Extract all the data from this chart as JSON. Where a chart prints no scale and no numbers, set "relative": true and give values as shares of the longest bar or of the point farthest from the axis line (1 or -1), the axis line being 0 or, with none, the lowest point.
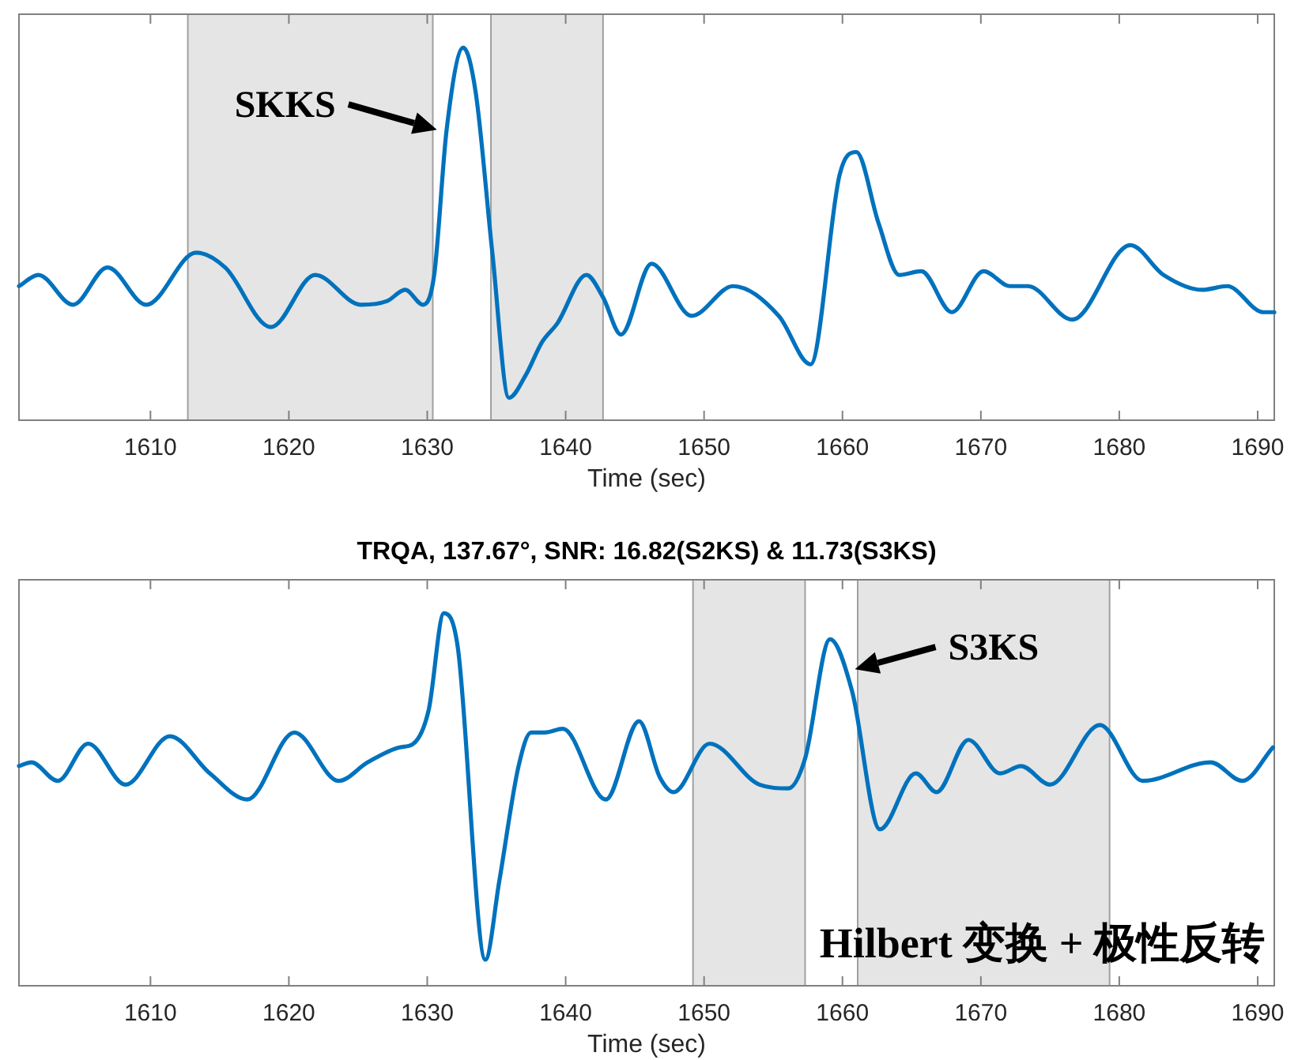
{
  "chart_data": [
    {
      "type": "line",
      "relative": true,
      "xlabel": "Time (sec)",
      "xlim": [
        1600.5,
        1691.2
      ],
      "xticks": [
        1610,
        1620,
        1630,
        1640,
        1650,
        1660,
        1670,
        1680,
        1690
      ],
      "tick_labels": "x",
      "x": [
        1600.5,
        1601.9,
        1604.4,
        1606.9,
        1609.7,
        1613.3,
        1615.4,
        1618.7,
        1621.9,
        1625.2,
        1627.1,
        1628.4,
        1629.7,
        1630.5,
        1631.4,
        1632.6,
        1633.5,
        1634.7,
        1635.9,
        1637.1,
        1638.3,
        1639.4,
        1641.5,
        1642.7,
        1644.0,
        1646.2,
        1649.1,
        1652.1,
        1655.4,
        1657.7,
        1659.8,
        1661.0,
        1662.6,
        1664.1,
        1665.7,
        1667.9,
        1670.2,
        1672.1,
        1673.4,
        1676.6,
        1680.8,
        1683.2,
        1686.0,
        1687.8,
        1690.4,
        1691.2
      ],
      "series": [
        {
          "color": "#0072bd",
          "values": [
            0.36,
            0.39,
            0.31,
            0.41,
            0.31,
            0.45,
            0.41,
            0.25,
            0.39,
            0.31,
            0.32,
            0.35,
            0.31,
            0.39,
            0.78,
            1,
            0.88,
            0.45,
            0.06,
            0.12,
            0.21,
            0.26,
            0.39,
            0.33,
            0.23,
            0.42,
            0.28,
            0.36,
            0.28,
            0.15,
            0.66,
            0.72,
            0.53,
            0.39,
            0.4,
            0.29,
            0.4,
            0.36,
            0.36,
            0.27,
            0.47,
            0.39,
            0.35,
            0.36,
            0.29,
            0.29
          ]
        }
      ],
      "bands": [
        {
          "axis": "x",
          "from": 1612.7,
          "to": 1630.4,
          "color": "#e5e5e5"
        },
        {
          "axis": "x",
          "from": 1634.6,
          "to": 1642.7,
          "color": "#e5e5e5"
        }
      ],
      "annotations": [
        {
          "text": "SKKS",
          "x": 1630.7,
          "y": 0.78
        }
      ]
    },
    {
      "type": "line",
      "relative": true,
      "title": "TRQA, 137.67°, SNR: 16.82(S2KS) & 11.73(S3KS)",
      "xlabel": "Time (sec)",
      "xlim": [
        1600.5,
        1691.2
      ],
      "xticks": [
        1610,
        1620,
        1630,
        1640,
        1650,
        1660,
        1670,
        1680,
        1690
      ],
      "tick_labels": "x",
      "x": [
        1600.5,
        1601.4,
        1603.3,
        1605.5,
        1608.2,
        1611.4,
        1614.3,
        1617.0,
        1620.4,
        1623.6,
        1625.7,
        1628.0,
        1629.0,
        1630.1,
        1631.2,
        1632.2,
        1634.2,
        1635.2,
        1636.6,
        1637.5,
        1638.5,
        1639.8,
        1642.9,
        1645.3,
        1646.8,
        1647.8,
        1650.4,
        1654.0,
        1656.1,
        1657.3,
        1659.1,
        1660.7,
        1662.7,
        1665.3,
        1666.8,
        1669.1,
        1671.4,
        1672.9,
        1675.0,
        1678.6,
        1681.7,
        1686.6,
        1688.9,
        1691.1
      ],
      "series": [
        {
          "color": "#0072bd",
          "values": [
            0.59,
            0.6,
            0.55,
            0.65,
            0.54,
            0.67,
            0.57,
            0.5,
            0.68,
            0.55,
            0.6,
            0.64,
            0.65,
            0.74,
            1,
            0.91,
            0.07,
            0.28,
            0.59,
            0.68,
            0.68,
            0.69,
            0.5,
            0.71,
            0.56,
            0.52,
            0.65,
            0.54,
            0.53,
            0.61,
            0.93,
            0.79,
            0.42,
            0.57,
            0.52,
            0.66,
            0.57,
            0.59,
            0.54,
            0.7,
            0.55,
            0.6,
            0.55,
            0.64
          ]
        }
      ],
      "bands": [
        {
          "axis": "x",
          "from": 1649.2,
          "to": 1657.3,
          "color": "#e5e5e5"
        },
        {
          "axis": "x",
          "from": 1661.1,
          "to": 1679.3,
          "color": "#e5e5e5"
        }
      ],
      "annotations": [
        {
          "text": "S3KS",
          "x": 1660.9,
          "y": 0.85
        },
        "Hilbert 变换 + 极性反转"
      ]
    }
  ]
}
